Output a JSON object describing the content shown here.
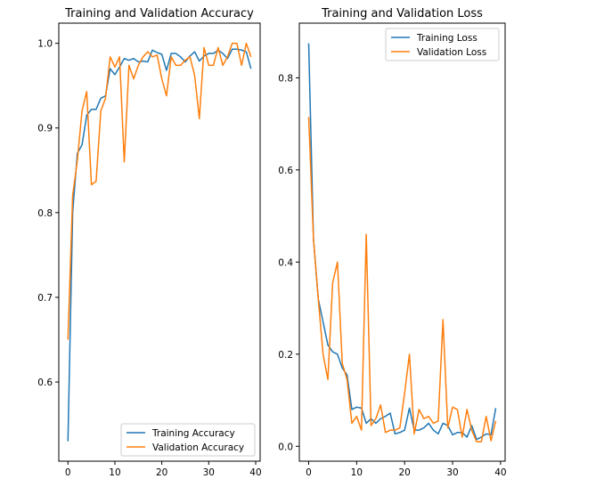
{
  "chart_data": [
    {
      "type": "line",
      "title": "Training and Validation Accuracy",
      "xlabel": "",
      "ylabel": "",
      "xlim": [
        -1.95,
        40.95
      ],
      "ylim": [
        0.5065,
        1.0238
      ],
      "xticks": [
        0,
        10,
        20,
        30,
        40
      ],
      "yticks": [
        0.6,
        0.7,
        0.8,
        0.9,
        1.0
      ],
      "xtick_labels": [
        "0",
        "10",
        "20",
        "30",
        "40"
      ],
      "ytick_labels": [
        "0.6",
        "0.7",
        "0.8",
        "0.9",
        "1.0"
      ],
      "grid": false,
      "legend_position": "lower right",
      "x": [
        0,
        1,
        2,
        3,
        4,
        5,
        6,
        7,
        8,
        9,
        10,
        11,
        12,
        13,
        14,
        15,
        16,
        17,
        18,
        19,
        20,
        21,
        22,
        23,
        24,
        25,
        26,
        27,
        28,
        29,
        30,
        31,
        32,
        33,
        34,
        35,
        36,
        37,
        38,
        39
      ],
      "series": [
        {
          "name": "Training Accuracy",
          "color": "#1f77b4",
          "values": [
            0.53,
            0.8,
            0.87,
            0.88,
            0.915,
            0.922,
            0.922,
            0.935,
            0.938,
            0.97,
            0.963,
            0.972,
            0.982,
            0.98,
            0.982,
            0.978,
            0.979,
            0.978,
            0.992,
            0.989,
            0.987,
            0.968,
            0.988,
            0.988,
            0.984,
            0.978,
            0.985,
            0.99,
            0.979,
            0.985,
            0.988,
            0.988,
            0.992,
            0.988,
            0.982,
            0.993,
            0.993,
            0.992,
            0.99,
            0.97
          ]
        },
        {
          "name": "Validation Accuracy",
          "color": "#ff7f0e",
          "values": [
            0.65,
            0.82,
            0.862,
            0.92,
            0.943,
            0.833,
            0.837,
            0.92,
            0.935,
            0.984,
            0.972,
            0.984,
            0.86,
            0.974,
            0.958,
            0.974,
            0.984,
            0.99,
            0.984,
            0.986,
            0.958,
            0.938,
            0.984,
            0.974,
            0.974,
            0.98,
            0.984,
            0.962,
            0.911,
            0.995,
            0.974,
            0.974,
            0.995,
            0.974,
            0.984,
            1.0,
            1.0,
            0.974,
            1.0,
            0.984
          ]
        }
      ]
    },
    {
      "type": "line",
      "title": "Training and Validation Loss",
      "xlabel": "",
      "ylabel": "",
      "xlim": [
        -1.95,
        40.95
      ],
      "ylim": [
        -0.0323,
        0.9187
      ],
      "xticks": [
        0,
        10,
        20,
        30,
        40
      ],
      "yticks": [
        0.0,
        0.2,
        0.4,
        0.6,
        0.8
      ],
      "xtick_labels": [
        "0",
        "10",
        "20",
        "30",
        "40"
      ],
      "ytick_labels": [
        "0.0",
        "0.2",
        "0.4",
        "0.6",
        "0.8"
      ],
      "grid": false,
      "legend_position": "upper right",
      "x": [
        0,
        1,
        2,
        3,
        4,
        5,
        6,
        7,
        8,
        9,
        10,
        11,
        12,
        13,
        14,
        15,
        16,
        17,
        18,
        19,
        20,
        21,
        22,
        23,
        24,
        25,
        26,
        27,
        28,
        29,
        30,
        31,
        32,
        33,
        34,
        35,
        36,
        37,
        38,
        39
      ],
      "series": [
        {
          "name": "Training Loss",
          "color": "#1f77b4",
          "values": [
            0.875,
            0.45,
            0.32,
            0.27,
            0.22,
            0.205,
            0.2,
            0.17,
            0.155,
            0.08,
            0.085,
            0.083,
            0.05,
            0.06,
            0.05,
            0.06,
            0.065,
            0.072,
            0.027,
            0.03,
            0.035,
            0.083,
            0.035,
            0.035,
            0.04,
            0.05,
            0.035,
            0.027,
            0.05,
            0.045,
            0.025,
            0.03,
            0.03,
            0.02,
            0.045,
            0.015,
            0.02,
            0.027,
            0.025,
            0.083
          ]
        },
        {
          "name": "Validation Loss",
          "color": "#ff7f0e",
          "values": [
            0.715,
            0.45,
            0.32,
            0.2,
            0.145,
            0.355,
            0.4,
            0.18,
            0.145,
            0.05,
            0.065,
            0.035,
            0.46,
            0.045,
            0.06,
            0.09,
            0.03,
            0.035,
            0.035,
            0.04,
            0.115,
            0.2,
            0.027,
            0.08,
            0.06,
            0.065,
            0.05,
            0.055,
            0.275,
            0.04,
            0.085,
            0.08,
            0.02,
            0.08,
            0.035,
            0.01,
            0.01,
            0.065,
            0.012,
            0.055
          ]
        }
      ]
    }
  ]
}
